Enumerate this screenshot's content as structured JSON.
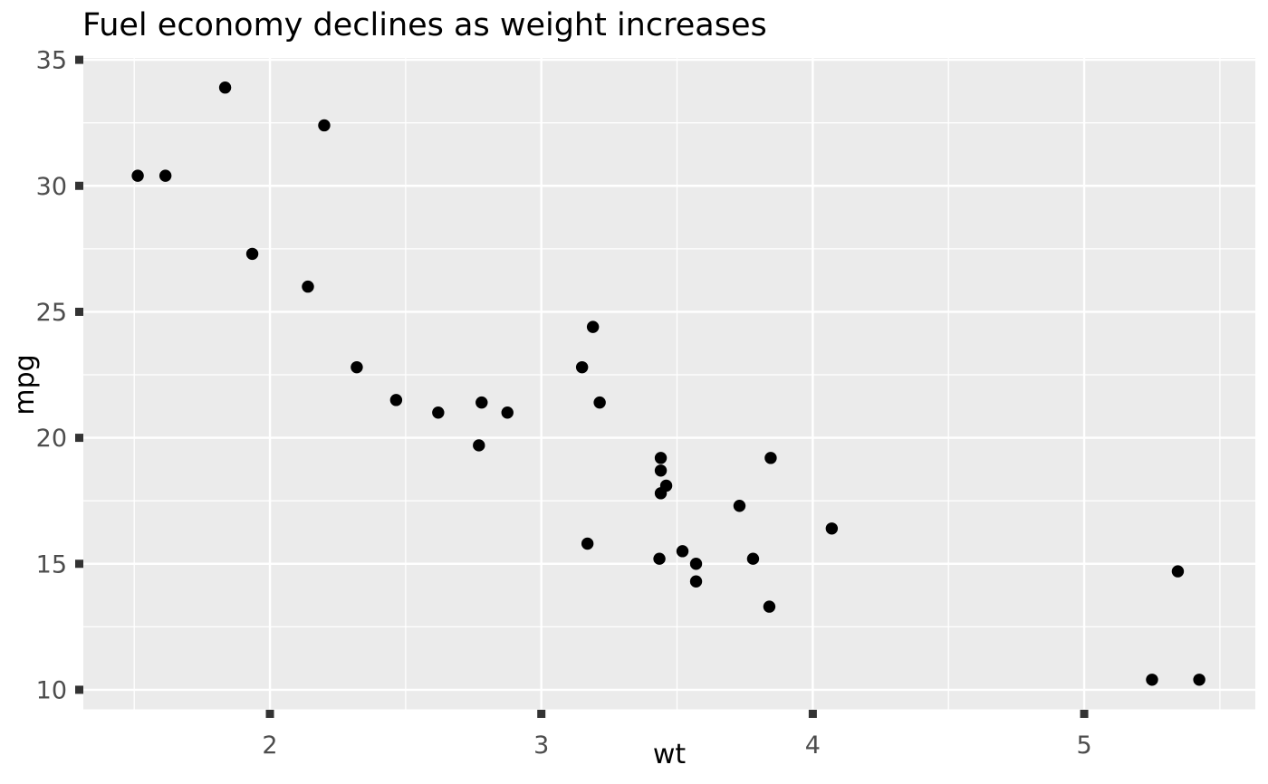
{
  "chart_data": {
    "type": "scatter",
    "title": "Fuel economy declines as weight increases",
    "xlabel": "wt",
    "ylabel": "mpg",
    "xlim": [
      1.3125,
      5.6305
    ],
    "ylim": [
      9.225,
      35.075
    ],
    "x_major_ticks": [
      2,
      3,
      4,
      5
    ],
    "x_minor_ticks": [
      1.5,
      2.5,
      3.5,
      4.5,
      5.5
    ],
    "y_major_ticks": [
      10,
      15,
      20,
      25,
      30,
      35
    ],
    "y_minor_ticks": [
      12.5,
      17.5,
      22.5,
      27.5,
      32.5
    ],
    "grid": true,
    "legend": "none",
    "point_format": [
      "wt",
      "mpg"
    ],
    "points": [
      [
        2.62,
        21.0
      ],
      [
        2.875,
        21.0
      ],
      [
        2.32,
        22.8
      ],
      [
        3.215,
        21.4
      ],
      [
        3.44,
        18.7
      ],
      [
        3.46,
        18.1
      ],
      [
        3.57,
        14.3
      ],
      [
        3.19,
        24.4
      ],
      [
        3.15,
        22.8
      ],
      [
        3.44,
        19.2
      ],
      [
        3.44,
        17.8
      ],
      [
        4.07,
        16.4
      ],
      [
        3.73,
        17.3
      ],
      [
        3.78,
        15.2
      ],
      [
        5.25,
        10.4
      ],
      [
        5.424,
        10.4
      ],
      [
        5.345,
        14.7
      ],
      [
        2.2,
        32.4
      ],
      [
        1.615,
        30.4
      ],
      [
        1.835,
        33.9
      ],
      [
        2.465,
        21.5
      ],
      [
        3.52,
        15.5
      ],
      [
        3.435,
        15.2
      ],
      [
        3.84,
        13.3
      ],
      [
        3.845,
        19.2
      ],
      [
        1.935,
        27.3
      ],
      [
        2.14,
        26.0
      ],
      [
        1.513,
        30.4
      ],
      [
        3.17,
        15.8
      ],
      [
        2.77,
        19.7
      ],
      [
        3.57,
        15.0
      ],
      [
        2.78,
        21.4
      ]
    ],
    "theme": {
      "panel_background": "#EBEBEB",
      "grid_color": "#FFFFFF",
      "point_color": "#000000",
      "tick_mark_color": "#333333",
      "tick_label_color": "#4D4D4D",
      "title_color": "#000000",
      "axis_title_color": "#000000"
    }
  }
}
